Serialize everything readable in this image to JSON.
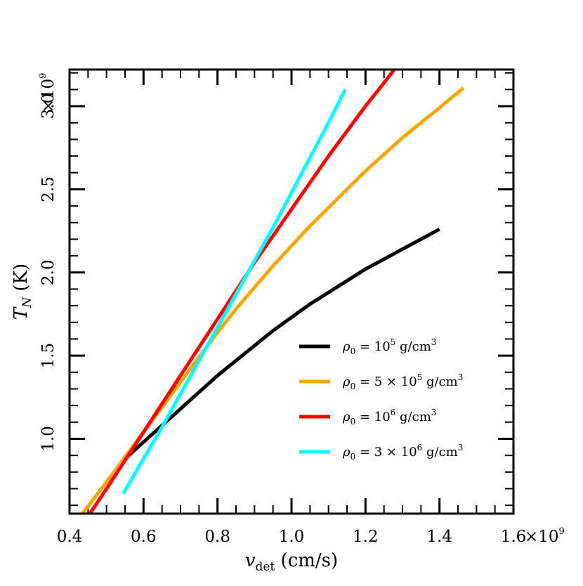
{
  "chart_data": {
    "type": "line",
    "title": "",
    "xlabel": {
      "main": "v",
      "sub": "det",
      "unit": " (cm/s)"
    },
    "ylabel": {
      "main": "T",
      "sub": "N",
      "unit": " (K)"
    },
    "xlim": [
      0.4,
      1.6
    ],
    "ylim": [
      0.55,
      3.22
    ],
    "x_scale_label": "×10",
    "x_scale_exp": "9",
    "y_scale_label": "×10",
    "y_scale_exp": "9",
    "x_ticks": [
      {
        "value": 0.4,
        "label": "0.4"
      },
      {
        "value": 0.6,
        "label": "0.6"
      },
      {
        "value": 0.8,
        "label": "0.8"
      },
      {
        "value": 1.0,
        "label": "1.0"
      },
      {
        "value": 1.2,
        "label": "1.2"
      },
      {
        "value": 1.4,
        "label": "1.4"
      },
      {
        "value": 1.6,
        "label": "1.6"
      }
    ],
    "y_ticks": [
      {
        "value": 1.0,
        "label": "1.0"
      },
      {
        "value": 1.5,
        "label": "1.5"
      },
      {
        "value": 2.0,
        "label": "2.0"
      },
      {
        "value": 2.5,
        "label": "2.5"
      },
      {
        "value": 3.0,
        "label": "3.0"
      }
    ],
    "x_minor_step": 0.05,
    "y_minor_step": 0.1,
    "grid": false,
    "legend_position": "lower-right",
    "series": [
      {
        "name": "ρ0 = 10^5 g/cm^3",
        "legend": {
          "pre": "ρ",
          "sub": "0",
          "mid": " = 10",
          "exp": "5",
          "mid2": "",
          "exp2": "",
          "unit": " g/cm",
          "unitexp": "3"
        },
        "color": "#000000",
        "x": [
          0.55,
          0.6,
          0.65,
          0.7,
          0.75,
          0.8,
          0.85,
          0.9,
          0.95,
          1.0,
          1.05,
          1.1,
          1.15,
          1.2,
          1.25,
          1.3,
          1.35,
          1.4
        ],
        "y": [
          0.88,
          0.98,
          1.08,
          1.18,
          1.28,
          1.38,
          1.47,
          1.56,
          1.65,
          1.73,
          1.81,
          1.88,
          1.95,
          2.02,
          2.08,
          2.14,
          2.2,
          2.26
        ]
      },
      {
        "name": "ρ0 = 5 × 10^5 g/cm^3",
        "legend": {
          "pre": "ρ",
          "sub": "0",
          "mid": " = 5 × 10",
          "exp": "5",
          "unit": " g/cm",
          "unitexp": "3"
        },
        "color": "#FFA500",
        "x": [
          0.435,
          0.5,
          0.55,
          0.6,
          0.65,
          0.7,
          0.75,
          0.8,
          0.85,
          0.9,
          0.95,
          1.0,
          1.05,
          1.1,
          1.15,
          1.2,
          1.25,
          1.3,
          1.35,
          1.4,
          1.465
        ],
        "y": [
          0.55,
          0.74,
          0.89,
          1.04,
          1.19,
          1.34,
          1.49,
          1.64,
          1.78,
          1.91,
          2.04,
          2.16,
          2.28,
          2.39,
          2.5,
          2.61,
          2.71,
          2.81,
          2.9,
          2.99,
          3.11
        ]
      },
      {
        "name": "ρ0 = 10^6 g/cm^3",
        "legend": {
          "pre": "ρ",
          "sub": "0",
          "mid": " = 10",
          "exp": "6",
          "unit": " g/cm",
          "unitexp": "3"
        },
        "color": "#FF0000",
        "x": [
          0.455,
          0.5,
          0.55,
          0.6,
          0.65,
          0.7,
          0.75,
          0.8,
          0.85,
          0.9,
          0.95,
          1.0,
          1.05,
          1.1,
          1.15,
          1.2,
          1.25,
          1.295
        ],
        "y": [
          0.55,
          0.7,
          0.87,
          1.04,
          1.21,
          1.38,
          1.55,
          1.72,
          1.89,
          2.06,
          2.22,
          2.38,
          2.54,
          2.7,
          2.85,
          3.0,
          3.14,
          3.27
        ]
      },
      {
        "name": "ρ0 = 3 × 10^6 g/cm^3",
        "legend": {
          "pre": "ρ",
          "sub": "0",
          "mid": " = 3 × 10",
          "exp": "6",
          "unit": " g/cm",
          "unitexp": "3"
        },
        "color": "#00FFFF",
        "x": [
          0.545,
          0.6,
          0.65,
          0.7,
          0.75,
          0.8,
          0.85,
          0.9,
          0.95,
          1.0,
          1.05,
          1.1,
          1.145
        ],
        "y": [
          0.67,
          0.88,
          1.07,
          1.27,
          1.47,
          1.67,
          1.87,
          2.07,
          2.27,
          2.48,
          2.69,
          2.9,
          3.1
        ]
      }
    ]
  }
}
